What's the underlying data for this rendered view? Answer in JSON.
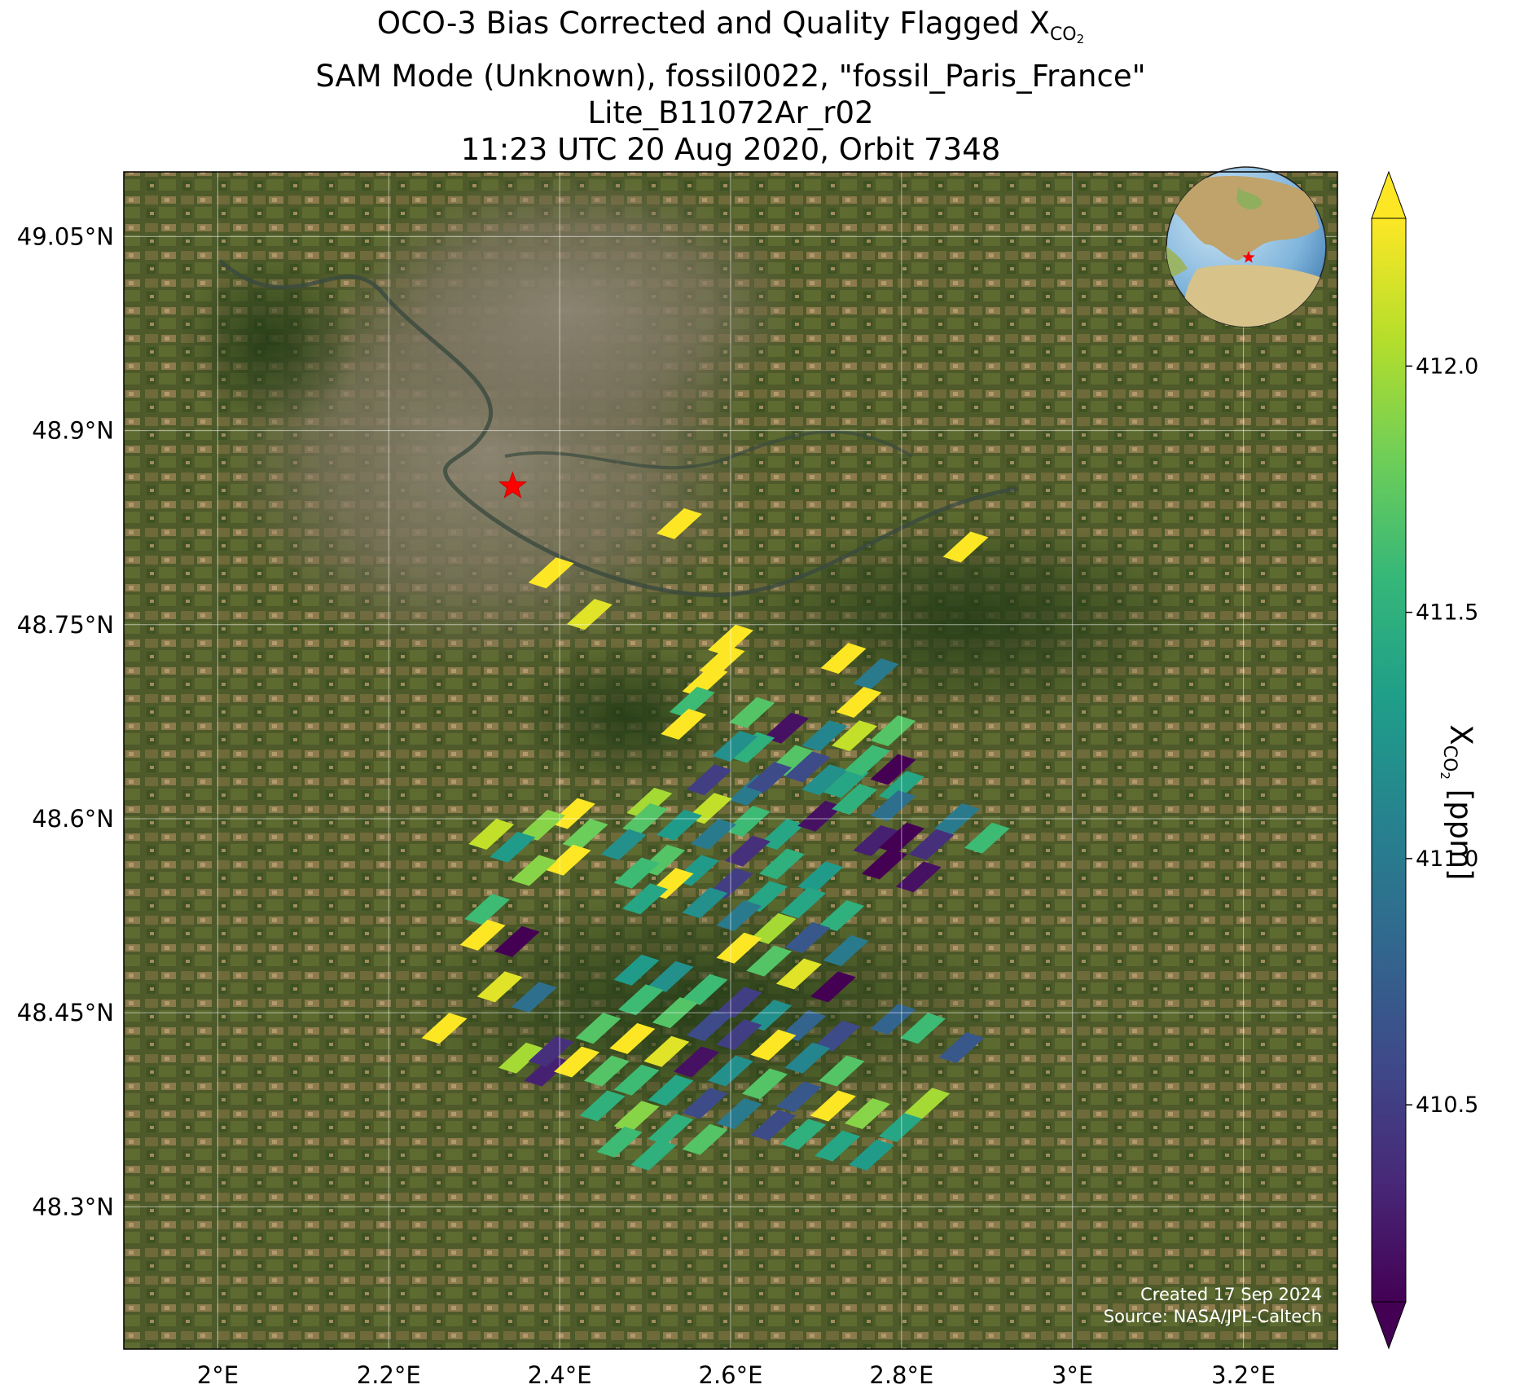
{
  "title": {
    "line1_prefix": "OCO-3 Bias Corrected and Quality Flagged X",
    "line1_sub": "CO",
    "line1_sub2": "2",
    "line2": "SAM Mode (Unknown), fossil0022, \"fossil_Paris_France\"",
    "line3": "Lite_B11072Ar_r02",
    "line4": "11:23 UTC 20 Aug 2020, Orbit 7348"
  },
  "colorbar": {
    "label_prefix": "X",
    "label_sub": "CO",
    "label_sub2": "2",
    "label_suffix": " [ppm]",
    "min": 410.1,
    "max": 412.3,
    "ticks": [
      "410.5",
      "411.0",
      "411.5",
      "412.0"
    ],
    "colormap": "viridis",
    "extend": "both"
  },
  "credit": {
    "line1": "Created 17 Sep 2024",
    "line2": "Source: NASA/JPL-Caltech"
  },
  "map": {
    "lon_range": [
      1.89,
      3.31
    ],
    "lat_range": [
      48.19,
      49.1
    ],
    "lon_ticks": [
      "2°E",
      "2.2°E",
      "2.4°E",
      "2.6°E",
      "2.8°E",
      "3°E",
      "3.2°E"
    ],
    "lon_tick_values": [
      2.0,
      2.2,
      2.4,
      2.6,
      2.8,
      3.0,
      3.2
    ],
    "lat_ticks": [
      "49.05°N",
      "48.9°N",
      "48.75°N",
      "48.6°N",
      "48.45°N",
      "48.3°N"
    ],
    "lat_tick_values": [
      49.05,
      48.9,
      48.75,
      48.6,
      48.45,
      48.3
    ],
    "grid": true,
    "background": "satellite imagery",
    "target": {
      "name": "Paris",
      "lon": 2.345,
      "lat": 48.857,
      "marker": "red-star"
    },
    "inset_globe": {
      "placement": "top-right",
      "marker": "red-star"
    },
    "soundings": [
      {
        "lon": 2.54,
        "lat": 48.828,
        "xco2": 412.3
      },
      {
        "lon": 2.875,
        "lat": 48.81,
        "xco2": 412.3
      },
      {
        "lon": 2.39,
        "lat": 48.79,
        "xco2": 412.3
      },
      {
        "lon": 2.435,
        "lat": 48.758,
        "xco2": 412.2
      },
      {
        "lon": 2.6,
        "lat": 48.738,
        "xco2": 412.3
      },
      {
        "lon": 2.59,
        "lat": 48.722,
        "xco2": 412.3
      },
      {
        "lon": 2.57,
        "lat": 48.706,
        "xco2": 412.3
      },
      {
        "lon": 2.732,
        "lat": 48.724,
        "xco2": 412.3
      },
      {
        "lon": 2.77,
        "lat": 48.712,
        "xco2": 411.0
      },
      {
        "lon": 2.555,
        "lat": 48.69,
        "xco2": 411.6
      },
      {
        "lon": 2.545,
        "lat": 48.673,
        "xco2": 412.3
      },
      {
        "lon": 2.625,
        "lat": 48.682,
        "xco2": 411.7
      },
      {
        "lon": 2.665,
        "lat": 48.67,
        "xco2": 410.2
      },
      {
        "lon": 2.71,
        "lat": 48.664,
        "xco2": 411.1
      },
      {
        "lon": 2.75,
        "lat": 48.69,
        "xco2": 412.3
      },
      {
        "lon": 2.79,
        "lat": 48.668,
        "xco2": 411.7
      },
      {
        "lon": 2.625,
        "lat": 48.655,
        "xco2": 411.5
      },
      {
        "lon": 2.67,
        "lat": 48.645,
        "xco2": 411.7
      },
      {
        "lon": 2.71,
        "lat": 48.63,
        "xco2": 411.2
      },
      {
        "lon": 2.745,
        "lat": 48.664,
        "xco2": 412.1
      },
      {
        "lon": 2.79,
        "lat": 48.638,
        "xco2": 410.1
      },
      {
        "lon": 2.625,
        "lat": 48.622,
        "xco2": 411.0
      },
      {
        "lon": 2.575,
        "lat": 48.63,
        "xco2": 410.5
      },
      {
        "lon": 2.645,
        "lat": 48.632,
        "xco2": 410.6
      },
      {
        "lon": 2.605,
        "lat": 48.656,
        "xco2": 411.2
      },
      {
        "lon": 2.69,
        "lat": 48.64,
        "xco2": 410.6
      },
      {
        "lon": 2.735,
        "lat": 48.628,
        "xco2": 411.4
      },
      {
        "lon": 2.76,
        "lat": 48.645,
        "xco2": 411.6
      },
      {
        "lon": 2.8,
        "lat": 48.625,
        "xco2": 411.4
      },
      {
        "lon": 2.575,
        "lat": 48.608,
        "xco2": 412.1
      },
      {
        "lon": 2.62,
        "lat": 48.598,
        "xco2": 411.6
      },
      {
        "lon": 2.66,
        "lat": 48.588,
        "xco2": 411.4
      },
      {
        "lon": 2.705,
        "lat": 48.602,
        "xco2": 410.2
      },
      {
        "lon": 2.745,
        "lat": 48.615,
        "xco2": 411.5
      },
      {
        "lon": 2.79,
        "lat": 48.61,
        "xco2": 410.9
      },
      {
        "lon": 2.505,
        "lat": 48.612,
        "xco2": 412.0
      },
      {
        "lon": 2.5,
        "lat": 48.6,
        "xco2": 411.7
      },
      {
        "lon": 2.54,
        "lat": 48.595,
        "xco2": 411.3
      },
      {
        "lon": 2.58,
        "lat": 48.588,
        "xco2": 411.0
      },
      {
        "lon": 2.62,
        "lat": 48.575,
        "xco2": 410.4
      },
      {
        "lon": 2.66,
        "lat": 48.565,
        "xco2": 411.5
      },
      {
        "lon": 2.705,
        "lat": 48.555,
        "xco2": 411.3
      },
      {
        "lon": 2.415,
        "lat": 48.604,
        "xco2": 412.3
      },
      {
        "lon": 2.38,
        "lat": 48.595,
        "xco2": 411.9
      },
      {
        "lon": 2.43,
        "lat": 48.588,
        "xco2": 411.8
      },
      {
        "lon": 2.475,
        "lat": 48.58,
        "xco2": 411.2
      },
      {
        "lon": 2.52,
        "lat": 48.568,
        "xco2": 411.7
      },
      {
        "lon": 2.56,
        "lat": 48.56,
        "xco2": 411.3
      },
      {
        "lon": 2.6,
        "lat": 48.55,
        "xco2": 410.5
      },
      {
        "lon": 2.64,
        "lat": 48.54,
        "xco2": 411.4
      },
      {
        "lon": 2.685,
        "lat": 48.535,
        "xco2": 411.4
      },
      {
        "lon": 2.73,
        "lat": 48.525,
        "xco2": 411.5
      },
      {
        "lon": 2.32,
        "lat": 48.588,
        "xco2": 412.1
      },
      {
        "lon": 2.345,
        "lat": 48.578,
        "xco2": 411.3
      },
      {
        "lon": 2.49,
        "lat": 48.558,
        "xco2": 411.6
      },
      {
        "lon": 2.53,
        "lat": 48.55,
        "xco2": 412.3
      },
      {
        "lon": 2.57,
        "lat": 48.535,
        "xco2": 411.2
      },
      {
        "lon": 2.61,
        "lat": 48.525,
        "xco2": 411.0
      },
      {
        "lon": 2.65,
        "lat": 48.515,
        "xco2": 412.0
      },
      {
        "lon": 2.69,
        "lat": 48.508,
        "xco2": 410.7
      },
      {
        "lon": 2.735,
        "lat": 48.498,
        "xco2": 411.0
      },
      {
        "lon": 2.77,
        "lat": 48.583,
        "xco2": 410.3
      },
      {
        "lon": 2.8,
        "lat": 48.585,
        "xco2": 410.1
      },
      {
        "lon": 2.835,
        "lat": 48.58,
        "xco2": 410.4
      },
      {
        "lon": 2.865,
        "lat": 48.6,
        "xco2": 411.0
      },
      {
        "lon": 2.9,
        "lat": 48.585,
        "xco2": 411.6
      },
      {
        "lon": 2.78,
        "lat": 48.565,
        "xco2": 410.1
      },
      {
        "lon": 2.82,
        "lat": 48.555,
        "xco2": 410.2
      },
      {
        "lon": 2.41,
        "lat": 48.568,
        "xco2": 412.3
      },
      {
        "lon": 2.37,
        "lat": 48.56,
        "xco2": 411.9
      },
      {
        "lon": 2.5,
        "lat": 48.538,
        "xco2": 411.4
      },
      {
        "lon": 2.61,
        "lat": 48.5,
        "xco2": 412.3
      },
      {
        "lon": 2.645,
        "lat": 48.49,
        "xco2": 411.7
      },
      {
        "lon": 2.68,
        "lat": 48.48,
        "xco2": 412.2
      },
      {
        "lon": 2.72,
        "lat": 48.47,
        "xco2": 410.1
      },
      {
        "lon": 2.315,
        "lat": 48.53,
        "xco2": 411.6
      },
      {
        "lon": 2.31,
        "lat": 48.51,
        "xco2": 412.3
      },
      {
        "lon": 2.35,
        "lat": 48.505,
        "xco2": 410.1
      },
      {
        "lon": 2.49,
        "lat": 48.483,
        "xco2": 411.3
      },
      {
        "lon": 2.53,
        "lat": 48.478,
        "xco2": 411.2
      },
      {
        "lon": 2.57,
        "lat": 48.468,
        "xco2": 411.6
      },
      {
        "lon": 2.61,
        "lat": 48.458,
        "xco2": 410.5
      },
      {
        "lon": 2.645,
        "lat": 48.448,
        "xco2": 411.2
      },
      {
        "lon": 2.685,
        "lat": 48.44,
        "xco2": 410.8
      },
      {
        "lon": 2.725,
        "lat": 48.432,
        "xco2": 410.6
      },
      {
        "lon": 2.33,
        "lat": 48.47,
        "xco2": 412.2
      },
      {
        "lon": 2.37,
        "lat": 48.462,
        "xco2": 410.9
      },
      {
        "lon": 2.495,
        "lat": 48.46,
        "xco2": 411.6
      },
      {
        "lon": 2.535,
        "lat": 48.45,
        "xco2": 411.7
      },
      {
        "lon": 2.575,
        "lat": 48.44,
        "xco2": 410.6
      },
      {
        "lon": 2.61,
        "lat": 48.433,
        "xco2": 410.5
      },
      {
        "lon": 2.65,
        "lat": 48.425,
        "xco2": 412.3
      },
      {
        "lon": 2.69,
        "lat": 48.415,
        "xco2": 411.1
      },
      {
        "lon": 2.73,
        "lat": 48.405,
        "xco2": 411.7
      },
      {
        "lon": 2.79,
        "lat": 48.445,
        "xco2": 410.8
      },
      {
        "lon": 2.825,
        "lat": 48.438,
        "xco2": 411.6
      },
      {
        "lon": 2.87,
        "lat": 48.423,
        "xco2": 410.7
      },
      {
        "lon": 2.265,
        "lat": 48.438,
        "xco2": 412.3
      },
      {
        "lon": 2.445,
        "lat": 48.438,
        "xco2": 411.7
      },
      {
        "lon": 2.485,
        "lat": 48.43,
        "xco2": 412.3
      },
      {
        "lon": 2.525,
        "lat": 48.42,
        "xco2": 412.2
      },
      {
        "lon": 2.56,
        "lat": 48.412,
        "xco2": 410.2
      },
      {
        "lon": 2.6,
        "lat": 48.405,
        "xco2": 411.2
      },
      {
        "lon": 2.64,
        "lat": 48.395,
        "xco2": 411.7
      },
      {
        "lon": 2.68,
        "lat": 48.385,
        "xco2": 410.7
      },
      {
        "lon": 2.72,
        "lat": 48.378,
        "xco2": 412.3
      },
      {
        "lon": 2.76,
        "lat": 48.372,
        "xco2": 411.9
      },
      {
        "lon": 2.8,
        "lat": 48.362,
        "xco2": 411.4
      },
      {
        "lon": 2.83,
        "lat": 48.38,
        "xco2": 412.0
      },
      {
        "lon": 2.355,
        "lat": 48.415,
        "xco2": 412.0
      },
      {
        "lon": 2.385,
        "lat": 48.405,
        "xco2": 410.3
      },
      {
        "lon": 2.39,
        "lat": 48.42,
        "xco2": 410.4
      },
      {
        "lon": 2.42,
        "lat": 48.412,
        "xco2": 412.3
      },
      {
        "lon": 2.455,
        "lat": 48.405,
        "xco2": 411.7
      },
      {
        "lon": 2.49,
        "lat": 48.398,
        "xco2": 411.6
      },
      {
        "lon": 2.53,
        "lat": 48.39,
        "xco2": 411.4
      },
      {
        "lon": 2.57,
        "lat": 48.38,
        "xco2": 410.6
      },
      {
        "lon": 2.61,
        "lat": 48.372,
        "xco2": 411.0
      },
      {
        "lon": 2.65,
        "lat": 48.363,
        "xco2": 410.6
      },
      {
        "lon": 2.685,
        "lat": 48.356,
        "xco2": 411.5
      },
      {
        "lon": 2.725,
        "lat": 48.347,
        "xco2": 411.4
      },
      {
        "lon": 2.765,
        "lat": 48.34,
        "xco2": 411.3
      },
      {
        "lon": 2.45,
        "lat": 48.378,
        "xco2": 411.5
      },
      {
        "lon": 2.49,
        "lat": 48.37,
        "xco2": 411.9
      },
      {
        "lon": 2.53,
        "lat": 48.36,
        "xco2": 411.5
      },
      {
        "lon": 2.57,
        "lat": 48.352,
        "xco2": 411.7
      },
      {
        "lon": 2.51,
        "lat": 48.34,
        "xco2": 411.5
      },
      {
        "lon": 2.47,
        "lat": 48.35,
        "xco2": 411.6
      }
    ]
  }
}
